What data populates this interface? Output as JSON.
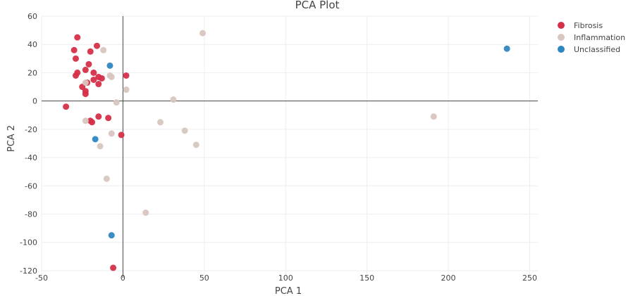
{
  "chart_data": {
    "type": "scatter",
    "title": "PCA Plot",
    "xlabel": "PCA 1",
    "ylabel": "PCA 2",
    "xlim": [
      -50,
      255
    ],
    "ylim": [
      -125,
      60
    ],
    "xticks": [
      -50,
      0,
      50,
      100,
      150,
      200,
      250
    ],
    "yticks": [
      60,
      40,
      20,
      0,
      -20,
      -40,
      -60,
      -80,
      -100,
      -120
    ],
    "grid": true,
    "legend_position": "top-right",
    "series": [
      {
        "name": "Fibrosis",
        "color": "#d62f48",
        "points": [
          [
            -28,
            45
          ],
          [
            -16,
            39
          ],
          [
            -30,
            36
          ],
          [
            -20,
            35
          ],
          [
            -29,
            30
          ],
          [
            -21,
            26
          ],
          [
            -23,
            22
          ],
          [
            -18,
            20
          ],
          [
            -28,
            20
          ],
          [
            -29,
            18
          ],
          [
            -15,
            17
          ],
          [
            2,
            18
          ],
          [
            -13,
            16
          ],
          [
            -18,
            15
          ],
          [
            -15,
            12
          ],
          [
            -22,
            13
          ],
          [
            -25,
            10
          ],
          [
            -23,
            7
          ],
          [
            -23,
            5
          ],
          [
            -35,
            -4
          ],
          [
            -15,
            -11
          ],
          [
            -9,
            -12
          ],
          [
            -20,
            -14
          ],
          [
            -19,
            -15
          ],
          [
            -1,
            -24
          ],
          [
            -6,
            -118
          ]
        ]
      },
      {
        "name": "Inflammation",
        "color": "#d8c6c0",
        "points": [
          [
            49,
            48
          ],
          [
            -12,
            36
          ],
          [
            -8,
            18
          ],
          [
            -7,
            17
          ],
          [
            -23,
            13
          ],
          [
            2,
            8
          ],
          [
            31,
            1
          ],
          [
            -4,
            -1
          ],
          [
            -23,
            -14
          ],
          [
            23,
            -15
          ],
          [
            -7,
            -23
          ],
          [
            38,
            -21
          ],
          [
            45,
            -31
          ],
          [
            -14,
            -32
          ],
          [
            -10,
            -55
          ],
          [
            14,
            -79
          ],
          [
            191,
            -11
          ]
        ]
      },
      {
        "name": "Unclassified",
        "color": "#2e86c1",
        "points": [
          [
            -8,
            25
          ],
          [
            236,
            37
          ],
          [
            -17,
            -27
          ],
          [
            -7,
            -95
          ]
        ]
      }
    ]
  }
}
